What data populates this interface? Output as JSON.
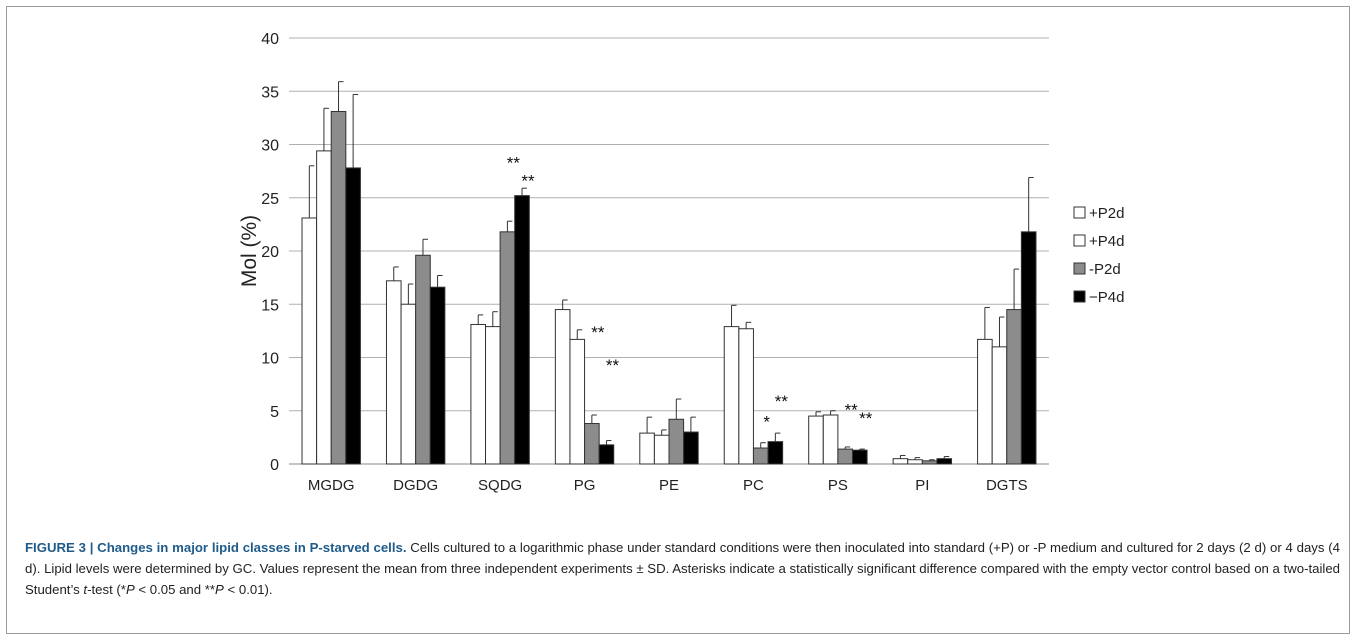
{
  "chart_data": {
    "type": "bar",
    "ylabel": "Mol (%)",
    "ylim": [
      0,
      40
    ],
    "yticks": [
      0,
      5,
      10,
      15,
      20,
      25,
      30,
      35,
      40
    ],
    "grid": true,
    "legend_position": "right",
    "categories": [
      "MGDG",
      "DGDG",
      "SQDG",
      "PG",
      "PE",
      "PC",
      "PS",
      "PI",
      "DGTS"
    ],
    "series": [
      {
        "name": "+P2d",
        "color": "#ffffff",
        "values": [
          23.1,
          17.2,
          13.1,
          14.5,
          2.9,
          12.9,
          4.5,
          0.5,
          11.7
        ],
        "errors": [
          4.9,
          1.3,
          0.9,
          0.9,
          1.5,
          2.0,
          0.4,
          0.3,
          3.0
        ]
      },
      {
        "name": "+P4d",
        "color": "#ffffff",
        "values": [
          29.4,
          15.0,
          12.9,
          11.7,
          2.7,
          12.7,
          4.6,
          0.4,
          11.0
        ],
        "errors": [
          4.0,
          1.9,
          1.4,
          0.9,
          0.5,
          0.6,
          0.4,
          0.2,
          2.8
        ]
      },
      {
        "name": "-P2d",
        "color": "#8c8c8c",
        "values": [
          33.1,
          19.6,
          21.8,
          3.8,
          4.2,
          1.5,
          1.4,
          0.3,
          14.5
        ],
        "errors": [
          2.8,
          1.5,
          1.0,
          0.8,
          1.9,
          0.5,
          0.2,
          0.1,
          3.8
        ]
      },
      {
        "name": "−P4d",
        "color": "#000000",
        "values": [
          27.8,
          16.6,
          25.2,
          1.8,
          3.0,
          2.1,
          1.3,
          0.5,
          21.8
        ],
        "errors": [
          6.9,
          1.1,
          0.7,
          0.4,
          1.4,
          0.8,
          0.1,
          0.2,
          5.1
        ]
      }
    ],
    "annotations": [
      {
        "category": "SQDG",
        "series": "-P2d",
        "text": "**",
        "y": 28.5
      },
      {
        "category": "SQDG",
        "series": "−P4d",
        "text": "**",
        "y": 26.8
      },
      {
        "category": "PG",
        "series": "-P2d",
        "text": "**",
        "y": 12.6
      },
      {
        "category": "PG",
        "series": "−P4d",
        "text": "**",
        "y": 9.5
      },
      {
        "category": "PC",
        "series": "-P2d",
        "text": "*",
        "y": 4.2
      },
      {
        "category": "PC",
        "series": "−P4d",
        "text": "**",
        "y": 6.1
      },
      {
        "category": "PS",
        "series": "-P2d",
        "text": "**",
        "y": 5.3
      },
      {
        "category": "PS",
        "series": "−P4d",
        "text": "**",
        "y": 4.5
      }
    ]
  },
  "caption": {
    "label": "FIGURE 3 |",
    "title": "Changes in major lipid classes in P-starved cells.",
    "seg1": " Cells cultured to a logarithmic phase under standard conditions were then inoculated into standard (+P) or -P medium and cultured for 2 days (2 d) or 4 days (4 d). Lipid levels were determined by GC. Values represent the mean from three independent experiments ± SD. Asterisks indicate a statistically significant difference compared with the empty vector control based on a two-tailed Student’s ",
    "t": "t",
    "seg2": "-test (*",
    "p1": "P",
    "seg3": " < 0.05 and **",
    "p2": "P",
    "seg4": " < 0.01)."
  }
}
